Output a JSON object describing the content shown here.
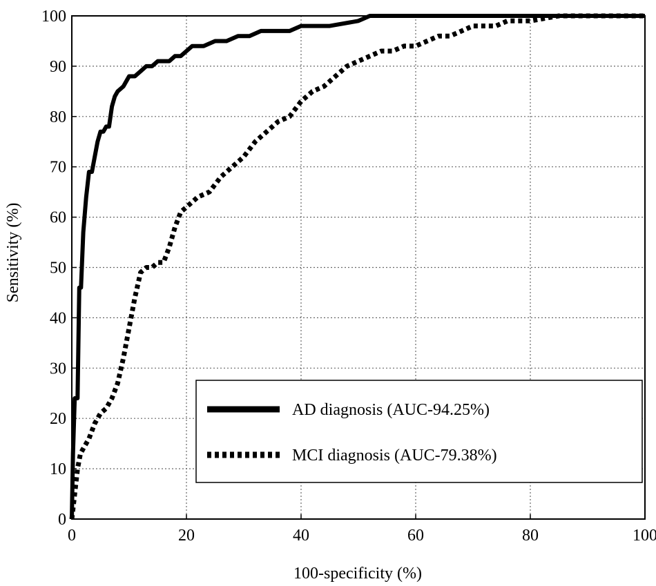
{
  "chart_data": {
    "type": "line",
    "title": "",
    "xlabel": "100-specificity (%)",
    "ylabel": "Sensitivity (%)",
    "xlim": [
      0,
      100
    ],
    "ylim": [
      0,
      100
    ],
    "grid": true,
    "legend_position": "bottom-right",
    "xticks": [
      "0",
      "20",
      "40",
      "60",
      "80",
      "100"
    ],
    "yticks": [
      "0",
      "10",
      "20",
      "30",
      "40",
      "50",
      "60",
      "70",
      "80",
      "90",
      "100"
    ],
    "series": [
      {
        "name": "AD diagnosis (AUC-94.25%)",
        "style": "solid",
        "color": "#000000",
        "x": [
          0,
          0.2,
          0.5,
          0.8,
          1.0,
          1.3,
          1.6,
          2.0,
          2.5,
          3.0,
          3.5,
          4.0,
          4.5,
          5.0,
          5.5,
          6.0,
          6.5,
          7.0,
          7.5,
          8.0,
          9.0,
          10.0,
          11.0,
          12.0,
          13.0,
          14.0,
          15.0,
          16.0,
          17.0,
          18.0,
          19.0,
          20.0,
          21.0,
          23.0,
          25.0,
          27.0,
          29.0,
          31.0,
          33.0,
          36.0,
          38.0,
          40.0,
          45.0,
          50.0,
          52.0,
          60.0,
          70.0,
          80.0,
          90.0,
          100.0
        ],
        "y": [
          0,
          13,
          24,
          24,
          24,
          46,
          46,
          57,
          64,
          69,
          69,
          72,
          75,
          77,
          77,
          78,
          78,
          82,
          84,
          85,
          86,
          88,
          88,
          89,
          90,
          90,
          91,
          91,
          91,
          92,
          92,
          93,
          94,
          94,
          95,
          95,
          96,
          96,
          97,
          97,
          97,
          98,
          98,
          99,
          100,
          100,
          100,
          100,
          100,
          100
        ]
      },
      {
        "name": "MCI diagnosis (AUC-79.38%)",
        "style": "dotted",
        "color": "#000000",
        "x": [
          0,
          0.5,
          1.0,
          1.5,
          2.0,
          3.0,
          4.0,
          5.0,
          6.0,
          7.0,
          8.0,
          9.0,
          10.0,
          11.0,
          12.0,
          13.0,
          14.0,
          15.0,
          16.0,
          17.0,
          18.0,
          19.0,
          20.0,
          22.0,
          24.0,
          26.0,
          28.0,
          30.0,
          32.0,
          34.0,
          36.0,
          38.0,
          40.0,
          42.0,
          44.0,
          46.0,
          48.0,
          50.0,
          52.0,
          54.0,
          56.0,
          58.0,
          60.0,
          62.0,
          64.0,
          66.0,
          68.0,
          70.0,
          72.0,
          74.0,
          76.0,
          78.0,
          80.0,
          85.0,
          90.0,
          95.0,
          100.0
        ],
        "y": [
          0,
          5,
          10,
          13,
          14,
          16,
          19,
          21,
          22,
          24,
          27,
          32,
          38,
          44,
          49,
          50,
          50,
          51,
          51,
          54,
          58,
          61,
          62,
          64,
          65,
          68,
          70,
          72,
          75,
          77,
          79,
          80,
          83,
          85,
          86,
          88,
          90,
          91,
          92,
          93,
          93,
          94,
          94,
          95,
          96,
          96,
          97,
          98,
          98,
          98,
          99,
          99,
          99,
          100,
          100,
          100,
          100
        ]
      }
    ]
  }
}
